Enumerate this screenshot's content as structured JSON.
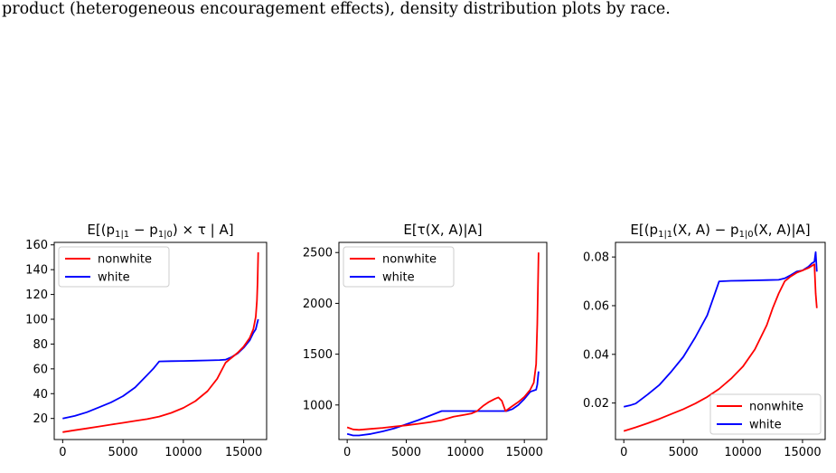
{
  "caption": "product (heterogeneous encouragement effects), density distribution plots by race.",
  "chart_data": [
    {
      "type": "line",
      "title": "E[(p1|1 − p1|0) × τ | A]",
      "xlim": [
        -700,
        16900
      ],
      "ylim": [
        3,
        162
      ],
      "xticks": [
        0,
        5000,
        10000,
        15000
      ],
      "xtick_labels": [
        "0",
        "5000",
        "10000",
        "15000"
      ],
      "yticks": [
        20,
        40,
        60,
        80,
        100,
        120,
        140,
        160
      ],
      "ytick_labels": [
        "20",
        "40",
        "60",
        "80",
        "100",
        "120",
        "140",
        "160"
      ],
      "legend_position": "top-left",
      "series": [
        {
          "name": "nonwhite",
          "color": "#ff0000",
          "x": [
            0,
            1000,
            2000,
            3000,
            4000,
            5000,
            6000,
            7000,
            8000,
            9000,
            10000,
            11000,
            12000,
            12800,
            13500,
            14000,
            14500,
            15000,
            15500,
            15800,
            16000,
            16100,
            16150,
            16200
          ],
          "y": [
            9,
            10.5,
            12,
            13.5,
            15,
            16.5,
            18,
            19.5,
            21.5,
            24.5,
            28.5,
            34,
            42,
            52,
            65,
            69,
            73,
            78,
            85,
            92,
            102,
            115,
            130,
            154
          ]
        },
        {
          "name": "white",
          "color": "#0000ff",
          "x": [
            0,
            1000,
            2000,
            3000,
            4000,
            5000,
            6000,
            7000,
            7500,
            8000,
            9000,
            10000,
            11000,
            12000,
            13000,
            13500,
            14000,
            14500,
            15000,
            15500,
            15800,
            16000,
            16100,
            16200
          ],
          "y": [
            20,
            22,
            25,
            29,
            33,
            38,
            45,
            55,
            60,
            66,
            66.2,
            66.4,
            66.6,
            66.8,
            67.1,
            67.4,
            69.5,
            72.5,
            77,
            83,
            89,
            92,
            96,
            100
          ]
        }
      ]
    },
    {
      "type": "line",
      "title": "E[τ(X, A)|A]",
      "xlim": [
        -700,
        16900
      ],
      "ylim": [
        660,
        2600
      ],
      "xticks": [
        0,
        5000,
        10000,
        15000
      ],
      "xtick_labels": [
        "0",
        "5000",
        "10000",
        "15000"
      ],
      "yticks": [
        1000,
        1500,
        2000,
        2500
      ],
      "ytick_labels": [
        "1000",
        "1500",
        "2000",
        "2500"
      ],
      "legend_position": "top-left",
      "series": [
        {
          "name": "nonwhite",
          "color": "#ff0000",
          "x": [
            0,
            500,
            1000,
            2000,
            3000,
            4000,
            5000,
            6000,
            7000,
            8000,
            9000,
            10000,
            10500,
            11000,
            11500,
            12000,
            12500,
            12800,
            13100,
            13400,
            14000,
            14500,
            15000,
            15500,
            15800,
            16000,
            16100,
            16200
          ],
          "y": [
            780,
            760,
            755,
            765,
            775,
            788,
            800,
            815,
            830,
            850,
            885,
            905,
            915,
            940,
            990,
            1030,
            1060,
            1075,
            1040,
            940,
            990,
            1030,
            1080,
            1150,
            1220,
            1400,
            1800,
            2500
          ]
        },
        {
          "name": "white",
          "color": "#0000ff",
          "x": [
            0,
            500,
            1000,
            2000,
            3000,
            4000,
            5000,
            6000,
            7000,
            8000,
            9000,
            10000,
            11000,
            12000,
            13000,
            13500,
            14000,
            14500,
            15000,
            15500,
            16000,
            16100,
            16200
          ],
          "y": [
            715,
            700,
            700,
            715,
            740,
            770,
            810,
            850,
            895,
            940,
            940,
            940,
            940,
            940,
            940,
            940,
            960,
            1000,
            1060,
            1130,
            1150,
            1200,
            1330
          ]
        }
      ]
    },
    {
      "type": "line",
      "title": "E[(p1|1(X, A) − p1|0(X, A)|A]",
      "xlim": [
        -700,
        16900
      ],
      "ylim": [
        0.005,
        0.086
      ],
      "xticks": [
        0,
        5000,
        10000,
        15000
      ],
      "xtick_labels": [
        "0",
        "5000",
        "10000",
        "15000"
      ],
      "yticks": [
        0.02,
        0.04,
        0.06,
        0.08
      ],
      "ytick_labels": [
        "0.02",
        "0.04",
        "0.06",
        "0.08"
      ],
      "legend_position": "bottom-right",
      "series": [
        {
          "name": "nonwhite",
          "color": "#ff0000",
          "x": [
            0,
            1000,
            2000,
            3000,
            4000,
            5000,
            6000,
            7000,
            8000,
            9000,
            10000,
            11000,
            12000,
            12500,
            13000,
            13500,
            14000,
            14500,
            15000,
            15500,
            16000,
            16100,
            16200
          ],
          "y": [
            0.0085,
            0.01,
            0.0117,
            0.0135,
            0.0155,
            0.0175,
            0.0198,
            0.0225,
            0.0258,
            0.03,
            0.035,
            0.042,
            0.052,
            0.059,
            0.065,
            0.07,
            0.072,
            0.0735,
            0.0745,
            0.0755,
            0.077,
            0.065,
            0.059
          ]
        },
        {
          "name": "white",
          "color": "#0000ff",
          "x": [
            0,
            500,
            1000,
            2000,
            3000,
            4000,
            5000,
            6000,
            7000,
            7500,
            8000,
            9000,
            10000,
            11000,
            12000,
            13000,
            13500,
            14000,
            14500,
            15000,
            15500,
            15800,
            16000,
            16100,
            16200
          ],
          "y": [
            0.0185,
            0.019,
            0.0198,
            0.0235,
            0.0275,
            0.033,
            0.039,
            0.047,
            0.056,
            0.063,
            0.07,
            0.0702,
            0.0703,
            0.0704,
            0.0705,
            0.0706,
            0.0712,
            0.0725,
            0.074,
            0.0745,
            0.076,
            0.0775,
            0.078,
            0.082,
            0.074
          ]
        }
      ]
    }
  ]
}
